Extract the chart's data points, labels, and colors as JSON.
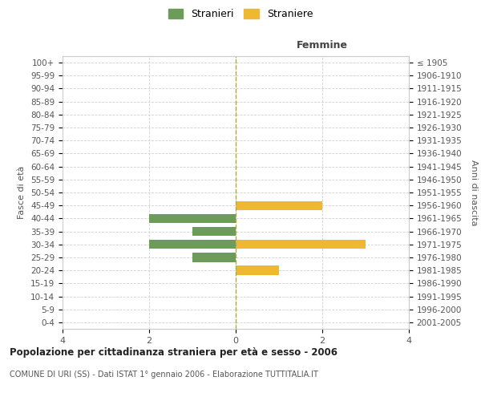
{
  "age_groups": [
    "0-4",
    "5-9",
    "10-14",
    "15-19",
    "20-24",
    "25-29",
    "30-34",
    "35-39",
    "40-44",
    "45-49",
    "50-54",
    "55-59",
    "60-64",
    "65-69",
    "70-74",
    "75-79",
    "80-84",
    "85-89",
    "90-94",
    "95-99",
    "100+"
  ],
  "birth_years": [
    "2001-2005",
    "1996-2000",
    "1991-1995",
    "1986-1990",
    "1981-1985",
    "1976-1980",
    "1971-1975",
    "1966-1970",
    "1961-1965",
    "1956-1960",
    "1951-1955",
    "1946-1950",
    "1941-1945",
    "1936-1940",
    "1931-1935",
    "1926-1930",
    "1921-1925",
    "1916-1920",
    "1911-1915",
    "1906-1910",
    "≤ 1905"
  ],
  "males": [
    0,
    0,
    0,
    0,
    0,
    1,
    2,
    1,
    2,
    0,
    0,
    0,
    0,
    0,
    0,
    0,
    0,
    0,
    0,
    0,
    0
  ],
  "females": [
    0,
    0,
    0,
    0,
    1,
    0,
    3,
    0,
    0,
    2,
    0,
    0,
    0,
    0,
    0,
    0,
    0,
    0,
    0,
    0,
    0
  ],
  "male_color": "#6d9b5a",
  "female_color": "#f0b830",
  "title_main": "Popolazione per cittadinanza straniera per età e sesso - 2006",
  "title_sub": "COMUNE DI URI (SS) - Dati ISTAT 1° gennaio 2006 - Elaborazione TUTTITALIA.IT",
  "xlabel_right": "Femmine",
  "ylabel_left": "Fasce di età",
  "ylabel_right": "Anni di nascita",
  "legend_male": "Stranieri",
  "legend_female": "Straniere",
  "xlim": 4,
  "background_color": "#ffffff",
  "grid_color": "#d0d0d0",
  "bar_height": 0.7
}
